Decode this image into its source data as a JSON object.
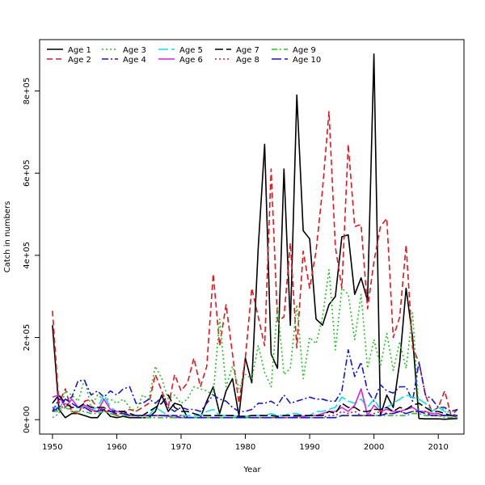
{
  "chart_data": {
    "type": "line",
    "xlabel": "Year",
    "ylabel": "Catch in numbers",
    "xlim": [
      1948,
      2014
    ],
    "ylim": [
      -35000,
      925000
    ],
    "xticks": [
      1950,
      1960,
      1970,
      1980,
      1990,
      2000,
      2010
    ],
    "yticks": [
      0,
      200000,
      400000,
      600000,
      800000
    ],
    "ytick_labels": [
      "0e+00",
      "2e+05",
      "4e+05",
      "6e+05",
      "8e+05"
    ],
    "legend_position": "top-left",
    "x": [
      1950,
      1951,
      1952,
      1953,
      1954,
      1955,
      1956,
      1957,
      1958,
      1959,
      1960,
      1961,
      1962,
      1963,
      1964,
      1965,
      1966,
      1967,
      1968,
      1969,
      1970,
      1971,
      1972,
      1973,
      1974,
      1975,
      1976,
      1977,
      1978,
      1979,
      1980,
      1981,
      1982,
      1983,
      1984,
      1985,
      1986,
      1987,
      1988,
      1989,
      1990,
      1991,
      1992,
      1993,
      1994,
      1995,
      1996,
      1997,
      1998,
      1999,
      2000,
      2001,
      2002,
      2003,
      2004,
      2005,
      2006,
      2007,
      2008,
      2009,
      2010,
      2011,
      2012,
      2013
    ],
    "series": [
      {
        "name": "Age 1",
        "color": "#000000",
        "dash": "solid",
        "width": 1.6,
        "values": [
          230000,
          25000,
          5000,
          15000,
          15000,
          10000,
          5000,
          5000,
          25000,
          8000,
          5000,
          8000,
          5000,
          5000,
          5000,
          5000,
          20000,
          60000,
          20000,
          40000,
          35000,
          5000,
          5000,
          5000,
          45000,
          80000,
          15000,
          70000,
          100000,
          10000,
          150000,
          90000,
          420000,
          670000,
          160000,
          125000,
          610000,
          230000,
          790000,
          460000,
          440000,
          245000,
          230000,
          280000,
          300000,
          445000,
          450000,
          305000,
          345000,
          290000,
          890000,
          10000,
          60000,
          30000,
          140000,
          320000,
          200000,
          3000,
          2000,
          2000,
          2000,
          1000,
          2000,
          3000
        ]
      },
      {
        "name": "Age 2",
        "color": "#e8141c",
        "dash": "7,4",
        "width": 1.6,
        "values": [
          265000,
          40000,
          75000,
          20000,
          15000,
          45000,
          50000,
          30000,
          20000,
          20000,
          10000,
          20000,
          25000,
          20000,
          30000,
          40000,
          110000,
          70000,
          30000,
          110000,
          70000,
          90000,
          150000,
          80000,
          130000,
          355000,
          180000,
          280000,
          160000,
          40000,
          150000,
          320000,
          250000,
          180000,
          610000,
          240000,
          250000,
          430000,
          175000,
          410000,
          320000,
          410000,
          560000,
          750000,
          420000,
          320000,
          670000,
          470000,
          475000,
          270000,
          385000,
          470000,
          490000,
          200000,
          250000,
          425000,
          175000,
          140000,
          60000,
          20000,
          30000,
          70000,
          10000,
          25000
        ]
      },
      {
        "name": "Age 3",
        "color": "#1ec81e",
        "dash": "2,3",
        "width": 1.6,
        "values": [
          5000,
          15000,
          70000,
          60000,
          45000,
          100000,
          30000,
          60000,
          50000,
          50000,
          40000,
          50000,
          30000,
          20000,
          60000,
          50000,
          130000,
          100000,
          50000,
          60000,
          40000,
          50000,
          80000,
          75000,
          70000,
          60000,
          245000,
          80000,
          130000,
          75000,
          110000,
          100000,
          180000,
          115000,
          80000,
          275000,
          110000,
          125000,
          280000,
          100000,
          200000,
          185000,
          250000,
          365000,
          170000,
          320000,
          305000,
          195000,
          305000,
          125000,
          195000,
          130000,
          210000,
          120000,
          190000,
          125000,
          260000,
          20000,
          15000,
          15000,
          15000,
          30000,
          10000,
          15000
        ]
      },
      {
        "name": "Age 4",
        "color": "#1414e8",
        "dash": "8,3,2,3",
        "width": 1.6,
        "values": [
          20000,
          50000,
          45000,
          55000,
          95000,
          95000,
          60000,
          70000,
          55000,
          70000,
          60000,
          75000,
          80000,
          40000,
          40000,
          50000,
          40000,
          55000,
          30000,
          20000,
          30000,
          25000,
          25000,
          20000,
          40000,
          60000,
          50000,
          45000,
          30000,
          20000,
          20000,
          25000,
          40000,
          40000,
          45000,
          35000,
          60000,
          40000,
          45000,
          50000,
          55000,
          50000,
          50000,
          45000,
          45000,
          70000,
          170000,
          105000,
          140000,
          70000,
          45000,
          85000,
          70000,
          65000,
          80000,
          80000,
          45000,
          140000,
          60000,
          50000,
          30000,
          30000,
          20000,
          25000
        ]
      },
      {
        "name": "Age 5",
        "color": "#00e5ee",
        "dash": "12,4",
        "width": 1.6,
        "values": [
          30000,
          30000,
          40000,
          30000,
          30000,
          30000,
          25000,
          30000,
          60000,
          30000,
          20000,
          20000,
          10000,
          10000,
          10000,
          10000,
          30000,
          20000,
          10000,
          10000,
          10000,
          10000,
          10000,
          10000,
          20000,
          25000,
          10000,
          10000,
          10000,
          8000,
          8000,
          10000,
          10000,
          10000,
          15000,
          10000,
          10000,
          15000,
          15000,
          10000,
          10000,
          20000,
          20000,
          25000,
          30000,
          55000,
          45000,
          40000,
          50000,
          30000,
          50000,
          25000,
          30000,
          40000,
          50000,
          60000,
          55000,
          50000,
          40000,
          20000,
          30000,
          20000,
          10000,
          10000
        ]
      },
      {
        "name": "Age 6",
        "color": "#e11ee1",
        "dash": "solid",
        "width": 1.6,
        "values": [
          55000,
          60000,
          30000,
          50000,
          30000,
          35000,
          25000,
          20000,
          50000,
          25000,
          20000,
          20000,
          10000,
          10000,
          10000,
          10000,
          10000,
          10000,
          8000,
          5000,
          5000,
          5000,
          5000,
          5000,
          5000,
          5000,
          5000,
          5000,
          5000,
          5000,
          5000,
          5000,
          5000,
          5000,
          5000,
          5000,
          5000,
          5000,
          8000,
          8000,
          10000,
          10000,
          15000,
          20000,
          20000,
          30000,
          20000,
          35000,
          75000,
          10000,
          35000,
          20000,
          25000,
          20000,
          20000,
          25000,
          30000,
          20000,
          20000,
          15000,
          15000,
          10000,
          10000,
          5000
        ]
      },
      {
        "name": "Age 7",
        "color": "#000000",
        "dash": "10,4",
        "width": 1.6,
        "values": [
          40000,
          60000,
          40000,
          30000,
          30000,
          40000,
          30000,
          30000,
          30000,
          20000,
          20000,
          20000,
          15000,
          10000,
          10000,
          20000,
          30000,
          40000,
          60000,
          30000,
          20000,
          20000,
          15000,
          10000,
          10000,
          10000,
          10000,
          10000,
          10000,
          8000,
          8000,
          10000,
          10000,
          10000,
          10000,
          8000,
          10000,
          10000,
          10000,
          10000,
          10000,
          10000,
          10000,
          20000,
          15000,
          40000,
          30000,
          30000,
          20000,
          20000,
          25000,
          25000,
          30000,
          20000,
          30000,
          25000,
          35000,
          40000,
          30000,
          20000,
          20000,
          15000,
          10000,
          10000
        ]
      },
      {
        "name": "Age 8",
        "color": "#e8141c",
        "dash": "2,3",
        "width": 1.6,
        "values": [
          30000,
          20000,
          40000,
          20000,
          20000,
          30000,
          20000,
          20000,
          30000,
          20000,
          15000,
          15000,
          10000,
          10000,
          10000,
          10000,
          10000,
          10000,
          10000,
          10000,
          10000,
          5000,
          5000,
          5000,
          5000,
          5000,
          5000,
          5000,
          5000,
          5000,
          5000,
          5000,
          5000,
          5000,
          5000,
          5000,
          5000,
          5000,
          5000,
          5000,
          5000,
          5000,
          5000,
          10000,
          10000,
          20000,
          15000,
          20000,
          10000,
          10000,
          15000,
          20000,
          15000,
          15000,
          20000,
          15000,
          20000,
          20000,
          20000,
          10000,
          10000,
          10000,
          10000,
          5000
        ]
      },
      {
        "name": "Age 9",
        "color": "#1ec81e",
        "dash": "7,3,2,3",
        "width": 1.6,
        "values": [
          20000,
          20000,
          30000,
          20000,
          20000,
          20000,
          15000,
          15000,
          20000,
          15000,
          10000,
          10000,
          10000,
          10000,
          5000,
          5000,
          5000,
          5000,
          5000,
          5000,
          5000,
          5000,
          5000,
          5000,
          5000,
          5000,
          5000,
          5000,
          5000,
          5000,
          5000,
          5000,
          5000,
          5000,
          5000,
          5000,
          5000,
          5000,
          5000,
          5000,
          5000,
          5000,
          5000,
          5000,
          5000,
          10000,
          10000,
          10000,
          10000,
          10000,
          10000,
          10000,
          10000,
          10000,
          10000,
          10000,
          15000,
          15000,
          10000,
          10000,
          10000,
          5000,
          5000,
          5000
        ]
      },
      {
        "name": "Age 10",
        "color": "#1414e8",
        "dash": "12,4",
        "width": 1.6,
        "values": [
          20000,
          30000,
          50000,
          40000,
          30000,
          30000,
          20000,
          20000,
          25000,
          20000,
          15000,
          15000,
          10000,
          10000,
          10000,
          10000,
          10000,
          10000,
          10000,
          10000,
          5000,
          5000,
          5000,
          5000,
          5000,
          5000,
          5000,
          5000,
          5000,
          5000,
          5000,
          5000,
          5000,
          5000,
          5000,
          5000,
          5000,
          5000,
          5000,
          5000,
          5000,
          5000,
          5000,
          5000,
          5000,
          10000,
          10000,
          10000,
          10000,
          10000,
          10000,
          10000,
          15000,
          15000,
          20000,
          15000,
          20000,
          20000,
          15000,
          10000,
          10000,
          10000,
          10000,
          10000
        ]
      }
    ]
  }
}
